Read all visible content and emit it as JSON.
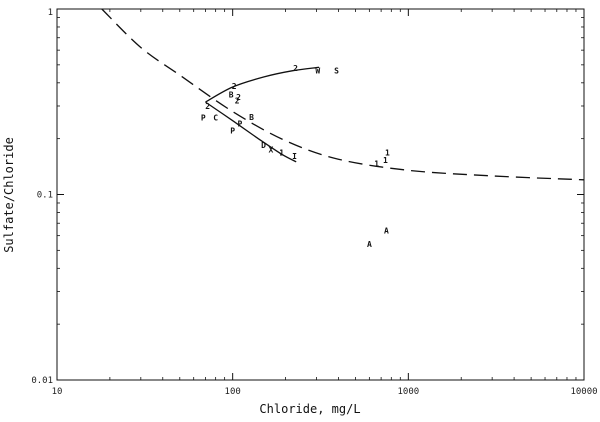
{
  "chart_data": {
    "type": "scatter",
    "title": "",
    "xlabel": "Chloride, mg/L",
    "ylabel": "Sulfate/Chloride",
    "x_scale": "log",
    "y_scale": "log",
    "xlim": [
      10,
      10000
    ],
    "ylim": [
      0.01,
      1
    ],
    "grid": false,
    "x_tick_values": [
      10,
      100,
      1000,
      10000
    ],
    "x_tick_labels": [
      "10",
      "100",
      "1000",
      "10000"
    ],
    "y_tick_values": [
      0.01,
      0.1,
      1
    ],
    "y_tick_labels": [
      "0.01",
      "0.1",
      "1"
    ],
    "series": [
      {
        "style": "dashed",
        "points": [
          [
            18,
            1.0
          ],
          [
            30,
            0.62
          ],
          [
            50,
            0.44
          ],
          [
            100,
            0.28
          ],
          [
            200,
            0.195
          ],
          [
            400,
            0.155
          ],
          [
            1000,
            0.135
          ],
          [
            3000,
            0.126
          ],
          [
            10000,
            0.12
          ]
        ]
      },
      {
        "style": "solid",
        "points": [
          [
            70,
            0.315
          ],
          [
            100,
            0.38
          ],
          [
            150,
            0.43
          ],
          [
            220,
            0.465
          ],
          [
            310,
            0.485
          ]
        ]
      },
      {
        "style": "solid",
        "points": [
          [
            70,
            0.315
          ],
          [
            100,
            0.25
          ],
          [
            140,
            0.2
          ],
          [
            190,
            0.165
          ],
          [
            230,
            0.15
          ]
        ]
      }
    ],
    "point_labels": [
      {
        "text": "2",
        "x": 228,
        "y": 0.48
      },
      {
        "text": "W",
        "x": 305,
        "y": 0.465
      },
      {
        "text": "S",
        "x": 390,
        "y": 0.465
      },
      {
        "text": "2",
        "x": 102,
        "y": 0.385
      },
      {
        "text": "B",
        "x": 98,
        "y": 0.345
      },
      {
        "text": "2",
        "x": 108,
        "y": 0.335
      },
      {
        "text": "2",
        "x": 106,
        "y": 0.322
      },
      {
        "text": "2",
        "x": 72,
        "y": 0.3
      },
      {
        "text": "P",
        "x": 68,
        "y": 0.26
      },
      {
        "text": "C",
        "x": 80,
        "y": 0.26
      },
      {
        "text": "B",
        "x": 128,
        "y": 0.262
      },
      {
        "text": "P",
        "x": 110,
        "y": 0.242
      },
      {
        "text": "P",
        "x": 100,
        "y": 0.222
      },
      {
        "text": "D",
        "x": 150,
        "y": 0.185
      },
      {
        "text": "X",
        "x": 165,
        "y": 0.175
      },
      {
        "text": "1",
        "x": 190,
        "y": 0.168
      },
      {
        "text": "I",
        "x": 225,
        "y": 0.161
      },
      {
        "text": "1",
        "x": 760,
        "y": 0.168
      },
      {
        "text": "1",
        "x": 740,
        "y": 0.153
      },
      {
        "text": "1",
        "x": 660,
        "y": 0.147
      },
      {
        "text": "A",
        "x": 750,
        "y": 0.064
      },
      {
        "text": "A",
        "x": 600,
        "y": 0.054
      }
    ]
  }
}
